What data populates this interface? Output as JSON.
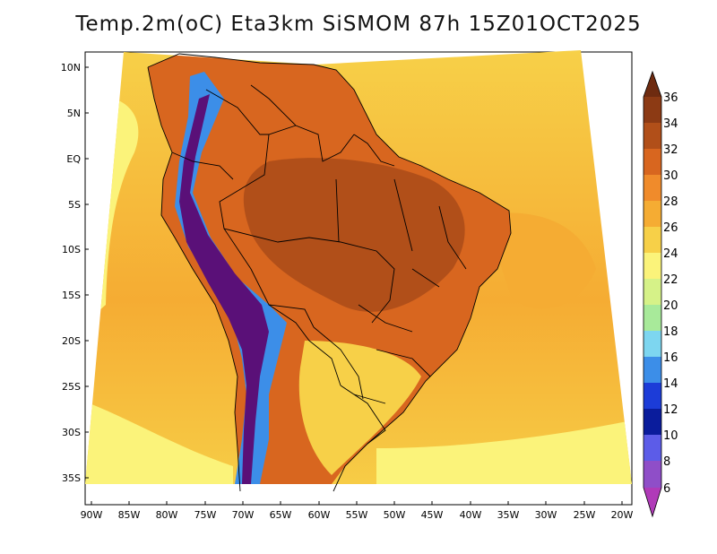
{
  "title": "Temp.2m(oC) Eta3km SiSMOM 87h 15Z01OCT2025",
  "lat_labels": [
    "10N",
    "5N",
    "EQ",
    "5S",
    "10S",
    "15S",
    "20S",
    "25S",
    "30S",
    "35S"
  ],
  "lon_labels": [
    "90W",
    "85W",
    "80W",
    "75W",
    "70W",
    "65W",
    "60W",
    "55W",
    "50W",
    "45W",
    "40W",
    "35W",
    "30W",
    "25W",
    "20W"
  ],
  "colorbar": {
    "labels": [
      "36",
      "34",
      "32",
      "30",
      "28",
      "26",
      "24",
      "22",
      "20",
      "18",
      "16",
      "14",
      "12",
      "10",
      "8",
      "6"
    ],
    "colors": [
      "#6e2b10",
      "#8c3a14",
      "#b14f19",
      "#d8661f",
      "#f08b2b",
      "#f5ac33",
      "#f7d048",
      "#fbf37a",
      "#d6f288",
      "#a8ea9a",
      "#7dd6f0",
      "#3c8ee8",
      "#1c3cd8",
      "#0a1c9c",
      "#5c5ce8",
      "#8f4ec8",
      "#b03ab8",
      "#5a1078"
    ]
  },
  "colors": {
    "ocean_warm": "#f5ac33",
    "ocean_mid": "#f7d048",
    "ocean_cool": "#fbf37a",
    "land_hot": "#d8661f",
    "land_veryhot": "#b14f19",
    "andes_cold": "#3c8ee8",
    "andes_verycold": "#5a1078",
    "border": "#000000"
  }
}
